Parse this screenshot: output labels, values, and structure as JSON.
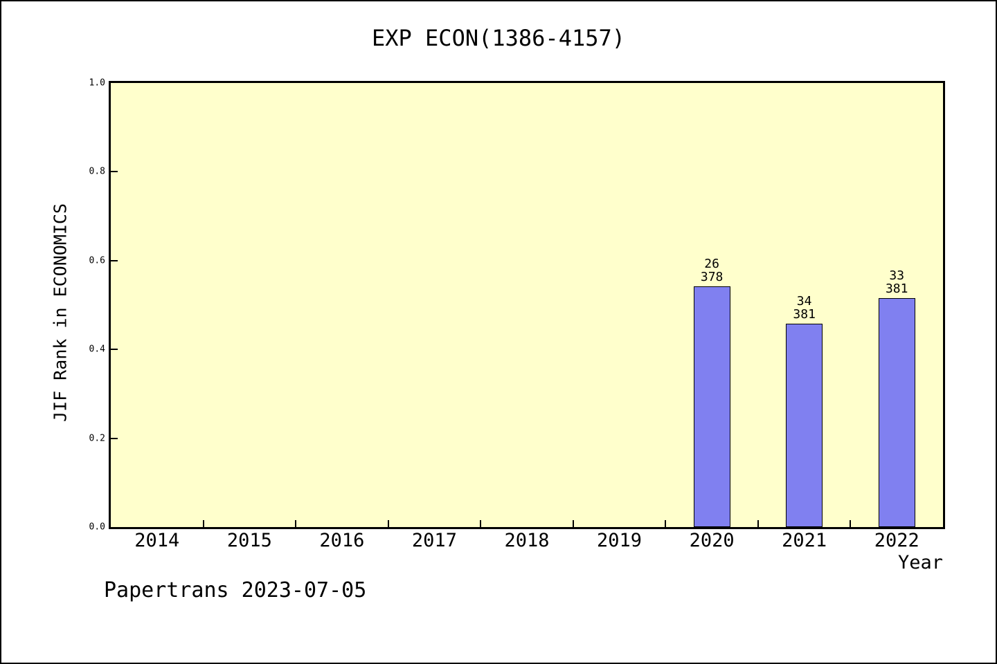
{
  "chart_data": {
    "type": "bar",
    "title": "EXP ECON(1386-4157)",
    "xlabel": "Year",
    "ylabel": "JIF Rank in ECONOMICS",
    "categories": [
      "2014",
      "2015",
      "2016",
      "2017",
      "2018",
      "2019",
      "2020",
      "2021",
      "2022"
    ],
    "ylim": [
      0.0,
      1.0
    ],
    "grid": false,
    "legend": false,
    "y_ticks": [
      {
        "value": 0.0,
        "label": "0.0"
      },
      {
        "value": 0.2,
        "label": "0.2"
      },
      {
        "value": 0.4,
        "label": "0.4"
      },
      {
        "value": 0.6,
        "label": "0.6"
      },
      {
        "value": 0.8,
        "label": "0.8"
      },
      {
        "value": 1.0,
        "label": "1.0"
      }
    ],
    "bars": [
      {
        "category": "2020",
        "value": 0.542,
        "rank": 26,
        "total": 378,
        "label_lines": [
          "26",
          "378"
        ]
      },
      {
        "category": "2021",
        "value": 0.458,
        "rank": 34,
        "total": 381,
        "label_lines": [
          "34",
          "381"
        ]
      },
      {
        "category": "2022",
        "value": 0.515,
        "rank": 33,
        "total": 381,
        "label_lines": [
          "33",
          "381"
        ]
      }
    ],
    "colors": {
      "bar_fill": "#8080f0",
      "bar_border": "#000000",
      "plot_bg": "#ffffcc",
      "frame": "#000000",
      "page_bg": "#ffffff",
      "text": "#000000"
    }
  },
  "footer": {
    "text": "Papertrans 2023-07-05"
  }
}
